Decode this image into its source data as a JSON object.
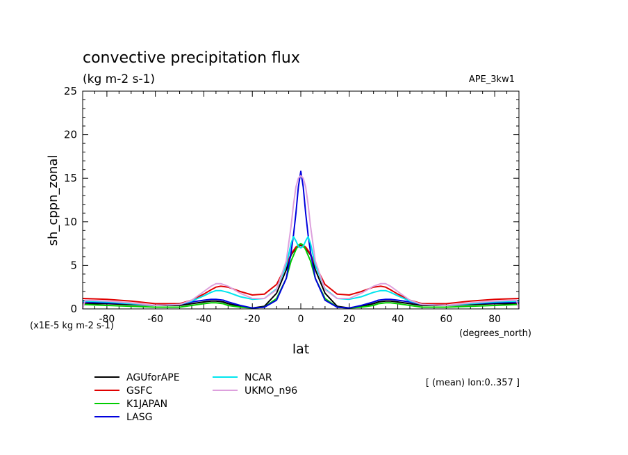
{
  "chart_data": {
    "type": "line",
    "title": "convective precipitation flux",
    "units": "(kg m-2 s-1)",
    "run_label": "APE_3kw1",
    "ylabel": "sh_cppn_zonal",
    "xlabel": "lat",
    "x_units": "(degrees_north)",
    "y_scale_note": "(x1E-5 kg m-2 s-1)",
    "subset_note": "[ (mean) lon:0..357 ]",
    "xlim": [
      -90,
      90
    ],
    "ylim": [
      0,
      25
    ],
    "x_ticks": [
      -80,
      -60,
      -40,
      -20,
      0,
      20,
      40,
      60,
      80
    ],
    "y_ticks": [
      0,
      5,
      10,
      15,
      20,
      25
    ],
    "x_tick_labels": [
      "-80",
      "-60",
      "-40",
      "-20",
      "0",
      "20",
      "40",
      "60",
      "80"
    ],
    "y_tick_labels": [
      "0",
      "5",
      "10",
      "15",
      "20",
      "25"
    ],
    "legend_position": "bottom",
    "series": [
      {
        "name": "AGUforAPE",
        "color": "#000000",
        "x": [
          -90,
          -80,
          -70,
          -60,
          -50,
          -45,
          -40,
          -37,
          -35,
          -32,
          -30,
          -25,
          -20,
          -15,
          -10,
          -6,
          -4,
          -2,
          0,
          2,
          4,
          6,
          10,
          15,
          20,
          25,
          30,
          32,
          35,
          37,
          40,
          45,
          50,
          60,
          70,
          80,
          90
        ],
        "y": [
          0.6,
          0.6,
          0.5,
          0.4,
          0.4,
          0.6,
          0.8,
          0.9,
          0.9,
          0.8,
          0.6,
          0.3,
          0.1,
          0.3,
          1.8,
          4.5,
          6.2,
          7.0,
          7.3,
          7.0,
          6.2,
          4.5,
          1.8,
          0.3,
          0.1,
          0.3,
          0.6,
          0.8,
          0.9,
          0.9,
          0.8,
          0.6,
          0.4,
          0.4,
          0.5,
          0.6,
          0.6
        ]
      },
      {
        "name": "GSFC",
        "color": "#e00000",
        "x": [
          -90,
          -80,
          -70,
          -60,
          -50,
          -45,
          -40,
          -37,
          -35,
          -33,
          -30,
          -25,
          -20,
          -15,
          -10,
          -6,
          -4,
          -2,
          0,
          2,
          4,
          6,
          10,
          15,
          20,
          25,
          30,
          33,
          35,
          37,
          40,
          45,
          50,
          60,
          70,
          80,
          90
        ],
        "y": [
          1.2,
          1.1,
          0.9,
          0.6,
          0.6,
          1.0,
          1.7,
          2.2,
          2.5,
          2.6,
          2.5,
          2.0,
          1.6,
          1.7,
          2.8,
          5.0,
          6.3,
          7.1,
          7.4,
          7.1,
          6.3,
          5.0,
          2.8,
          1.7,
          1.6,
          2.0,
          2.5,
          2.6,
          2.5,
          2.2,
          1.7,
          1.0,
          0.6,
          0.6,
          0.9,
          1.1,
          1.2
        ]
      },
      {
        "name": "K1JAPAN",
        "color": "#00cc00",
        "x": [
          -90,
          -80,
          -70,
          -60,
          -50,
          -45,
          -40,
          -37,
          -35,
          -32,
          -30,
          -25,
          -20,
          -15,
          -10,
          -6,
          -4,
          -2,
          -1,
          0,
          1,
          2,
          4,
          6,
          10,
          15,
          20,
          25,
          30,
          32,
          35,
          37,
          40,
          45,
          50,
          60,
          70,
          80,
          90
        ],
        "y": [
          0.5,
          0.4,
          0.3,
          0.2,
          0.2,
          0.4,
          0.6,
          0.7,
          0.7,
          0.6,
          0.4,
          0.2,
          0.1,
          0.2,
          1.2,
          3.5,
          5.5,
          6.8,
          7.3,
          7.5,
          7.3,
          6.8,
          5.5,
          3.5,
          1.2,
          0.2,
          0.1,
          0.2,
          0.4,
          0.6,
          0.7,
          0.7,
          0.6,
          0.4,
          0.2,
          0.2,
          0.3,
          0.4,
          0.5
        ]
      },
      {
        "name": "LASG",
        "color": "#0000dd",
        "x": [
          -90,
          -80,
          -70,
          -60,
          -50,
          -45,
          -40,
          -37,
          -35,
          -32,
          -30,
          -25,
          -20,
          -15,
          -10,
          -6,
          -4,
          -3,
          -2,
          -1,
          0,
          1,
          2,
          3,
          4,
          6,
          10,
          15,
          20,
          25,
          30,
          32,
          35,
          37,
          40,
          45,
          50,
          60,
          70,
          80,
          90
        ],
        "y": [
          0.8,
          0.7,
          0.6,
          0.4,
          0.5,
          0.8,
          1.0,
          1.1,
          1.1,
          1.0,
          0.8,
          0.4,
          0.1,
          0.2,
          1.0,
          3.5,
          6.5,
          8.5,
          11.0,
          14.0,
          15.8,
          14.0,
          11.0,
          8.5,
          6.5,
          3.5,
          1.0,
          0.2,
          0.1,
          0.4,
          0.8,
          1.0,
          1.1,
          1.1,
          1.0,
          0.8,
          0.5,
          0.4,
          0.6,
          0.7,
          0.8
        ]
      },
      {
        "name": "NCAR",
        "color": "#00e5ee",
        "x": [
          -90,
          -80,
          -70,
          -60,
          -50,
          -45,
          -40,
          -37,
          -35,
          -33,
          -30,
          -25,
          -20,
          -15,
          -10,
          -6,
          -4,
          -3,
          -2,
          -1,
          0,
          1,
          2,
          3,
          4,
          6,
          10,
          15,
          20,
          25,
          30,
          33,
          35,
          37,
          40,
          45,
          50,
          60,
          70,
          80,
          90
        ],
        "y": [
          0.9,
          0.8,
          0.6,
          0.4,
          0.5,
          0.9,
          1.5,
          1.9,
          2.1,
          2.1,
          1.9,
          1.4,
          1.1,
          1.2,
          2.3,
          5.0,
          7.5,
          8.3,
          7.8,
          7.2,
          7.0,
          7.2,
          7.8,
          8.3,
          7.5,
          5.0,
          2.3,
          1.2,
          1.1,
          1.4,
          1.9,
          2.1,
          2.1,
          1.9,
          1.5,
          0.9,
          0.5,
          0.4,
          0.6,
          0.8,
          0.9
        ]
      },
      {
        "name": "UKMO_n96",
        "color": "#dda0dd",
        "x": [
          -90,
          -89,
          -80,
          -70,
          -60,
          -50,
          -45,
          -40,
          -37,
          -35,
          -33,
          -30,
          -25,
          -20,
          -15,
          -10,
          -6,
          -4,
          -3,
          -2,
          -1,
          0,
          1,
          2,
          3,
          4,
          6,
          10,
          15,
          20,
          25,
          30,
          33,
          35,
          37,
          40,
          45,
          50,
          60,
          70,
          80,
          89,
          90
        ],
        "y": [
          0.0,
          1.0,
          0.9,
          0.7,
          0.4,
          0.5,
          1.0,
          2.0,
          2.6,
          2.9,
          2.9,
          2.6,
          1.8,
          1.2,
          1.2,
          2.2,
          5.5,
          9.5,
          12.0,
          14.0,
          15.0,
          15.3,
          15.0,
          14.0,
          12.0,
          9.5,
          5.5,
          2.2,
          1.2,
          1.2,
          1.8,
          2.6,
          2.9,
          2.9,
          2.6,
          2.0,
          1.0,
          0.5,
          0.4,
          0.7,
          0.9,
          1.0,
          0.0
        ]
      }
    ]
  }
}
